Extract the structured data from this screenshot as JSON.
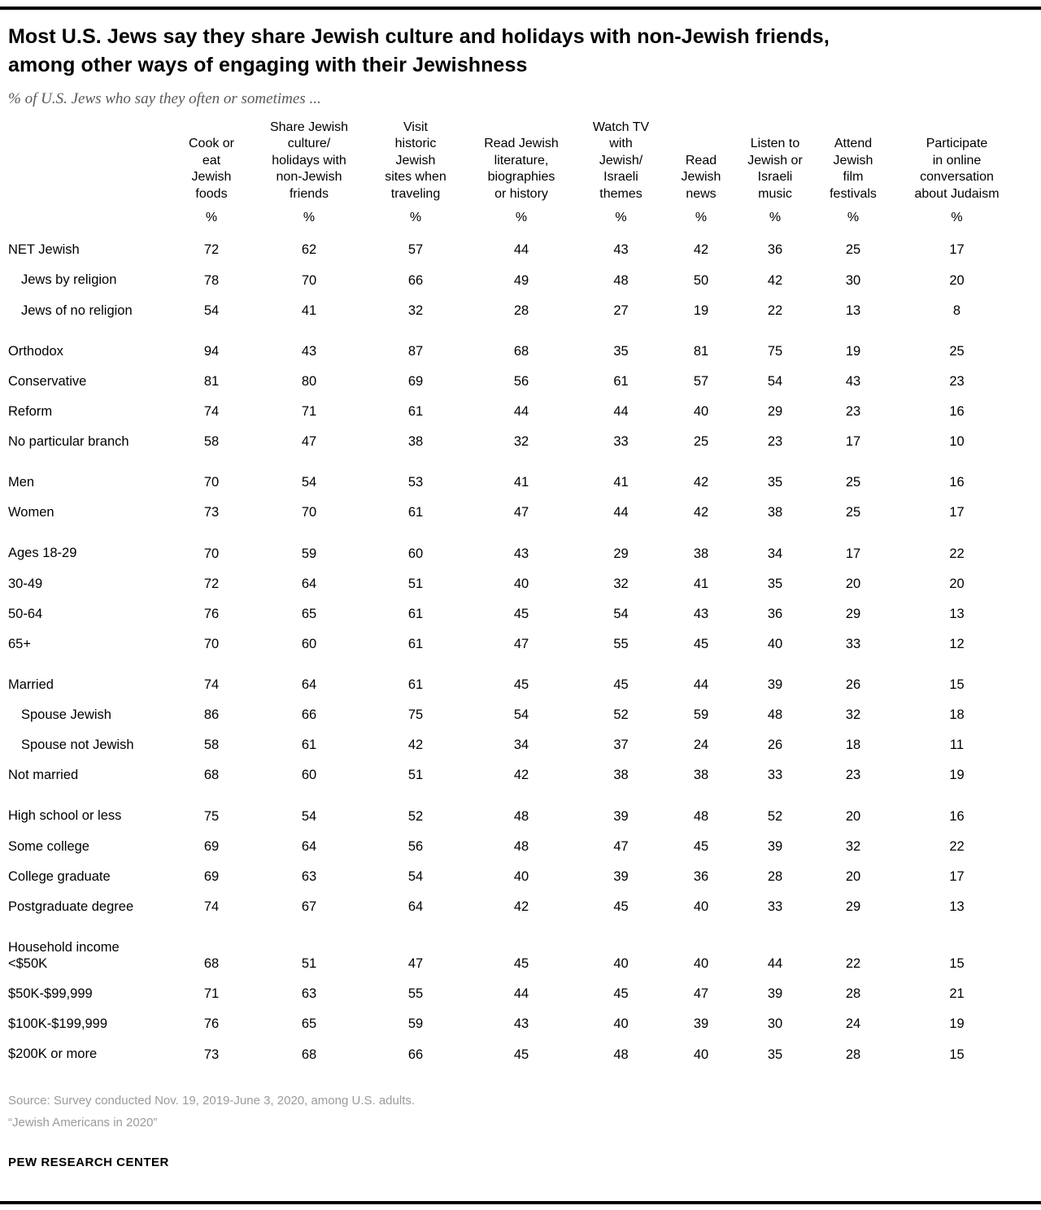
{
  "page": {
    "source_line1": "Source: Survey conducted Nov. 19, 2019-June 3, 2020, among U.S. adults.",
    "source_line2": "“Jewish Americans in 2020”",
    "brand": "PEW RESEARCH CENTER"
  },
  "chart_data": {
    "type": "table",
    "title": "Most U.S. Jews say they share Jewish culture and holidays with non-Jewish friends, among other ways of engaging with their Jewishness",
    "subtitle": "% of U.S. Jews who say they often or sometimes ...",
    "unit_label": "%",
    "columns": [
      "Cook or\neat\nJewish\nfoods",
      "Share Jewish\nculture/\nholidays with\nnon-Jewish\nfriends",
      "Visit\nhistoric\nJewish\nsites when\ntraveling",
      "Read Jewish\nliterature,\nbiographies\nor history",
      "Watch TV\nwith\nJewish/\nIsraeli\nthemes",
      "Read\nJewish\nnews",
      "Listen to\nJewish or\nIsraeli\nmusic",
      "Attend\nJewish\nfilm\nfestivals",
      "Participate\nin online\nconversation\nabout Judaism"
    ],
    "rows": [
      {
        "label": "NET Jewish",
        "indent": false,
        "group_start": false,
        "values": [
          72,
          62,
          57,
          44,
          43,
          42,
          36,
          25,
          17
        ]
      },
      {
        "label": "Jews by religion",
        "indent": true,
        "group_start": false,
        "values": [
          78,
          70,
          66,
          49,
          48,
          50,
          42,
          30,
          20
        ]
      },
      {
        "label": "Jews of no religion",
        "indent": true,
        "group_start": false,
        "values": [
          54,
          41,
          32,
          28,
          27,
          19,
          22,
          13,
          8
        ]
      },
      {
        "label": "Orthodox",
        "indent": false,
        "group_start": true,
        "values": [
          94,
          43,
          87,
          68,
          35,
          81,
          75,
          19,
          25
        ]
      },
      {
        "label": "Conservative",
        "indent": false,
        "group_start": false,
        "values": [
          81,
          80,
          69,
          56,
          61,
          57,
          54,
          43,
          23
        ]
      },
      {
        "label": "Reform",
        "indent": false,
        "group_start": false,
        "values": [
          74,
          71,
          61,
          44,
          44,
          40,
          29,
          23,
          16
        ]
      },
      {
        "label": "No particular branch",
        "indent": false,
        "group_start": false,
        "values": [
          58,
          47,
          38,
          32,
          33,
          25,
          23,
          17,
          10
        ]
      },
      {
        "label": "Men",
        "indent": false,
        "group_start": true,
        "values": [
          70,
          54,
          53,
          41,
          41,
          42,
          35,
          25,
          16
        ]
      },
      {
        "label": "Women",
        "indent": false,
        "group_start": false,
        "values": [
          73,
          70,
          61,
          47,
          44,
          42,
          38,
          25,
          17
        ]
      },
      {
        "label": "Ages 18-29",
        "indent": false,
        "group_start": true,
        "values": [
          70,
          59,
          60,
          43,
          29,
          38,
          34,
          17,
          22
        ]
      },
      {
        "label": "30-49",
        "indent": false,
        "group_start": false,
        "values": [
          72,
          64,
          51,
          40,
          32,
          41,
          35,
          20,
          20
        ]
      },
      {
        "label": "50-64",
        "indent": false,
        "group_start": false,
        "values": [
          76,
          65,
          61,
          45,
          54,
          43,
          36,
          29,
          13
        ]
      },
      {
        "label": "65+",
        "indent": false,
        "group_start": false,
        "values": [
          70,
          60,
          61,
          47,
          55,
          45,
          40,
          33,
          12
        ]
      },
      {
        "label": "Married",
        "indent": false,
        "group_start": true,
        "values": [
          74,
          64,
          61,
          45,
          45,
          44,
          39,
          26,
          15
        ]
      },
      {
        "label": "Spouse Jewish",
        "indent": true,
        "group_start": false,
        "values": [
          86,
          66,
          75,
          54,
          52,
          59,
          48,
          32,
          18
        ]
      },
      {
        "label": "Spouse not Jewish",
        "indent": true,
        "group_start": false,
        "values": [
          58,
          61,
          42,
          34,
          37,
          24,
          26,
          18,
          11
        ]
      },
      {
        "label": "Not married",
        "indent": false,
        "group_start": false,
        "values": [
          68,
          60,
          51,
          42,
          38,
          38,
          33,
          23,
          19
        ]
      },
      {
        "label": "High school or less",
        "indent": false,
        "group_start": true,
        "values": [
          75,
          54,
          52,
          48,
          39,
          48,
          52,
          20,
          16
        ]
      },
      {
        "label": "Some college",
        "indent": false,
        "group_start": false,
        "values": [
          69,
          64,
          56,
          48,
          47,
          45,
          39,
          32,
          22
        ]
      },
      {
        "label": "College graduate",
        "indent": false,
        "group_start": false,
        "values": [
          69,
          63,
          54,
          40,
          39,
          36,
          28,
          20,
          17
        ]
      },
      {
        "label": "Postgraduate degree",
        "indent": false,
        "group_start": false,
        "values": [
          74,
          67,
          64,
          42,
          45,
          40,
          33,
          29,
          13
        ]
      },
      {
        "label": "Household income\n<$50K",
        "indent": false,
        "group_start": true,
        "values": [
          68,
          51,
          47,
          45,
          40,
          40,
          44,
          22,
          15
        ]
      },
      {
        "label": "$50K-$99,999",
        "indent": false,
        "group_start": false,
        "values": [
          71,
          63,
          55,
          44,
          45,
          47,
          39,
          28,
          21
        ]
      },
      {
        "label": "$100K-$199,999",
        "indent": false,
        "group_start": false,
        "values": [
          76,
          65,
          59,
          43,
          40,
          39,
          30,
          24,
          19
        ]
      },
      {
        "label": "$200K or more",
        "indent": false,
        "group_start": false,
        "values": [
          73,
          68,
          66,
          45,
          48,
          40,
          35,
          28,
          15
        ]
      }
    ]
  }
}
